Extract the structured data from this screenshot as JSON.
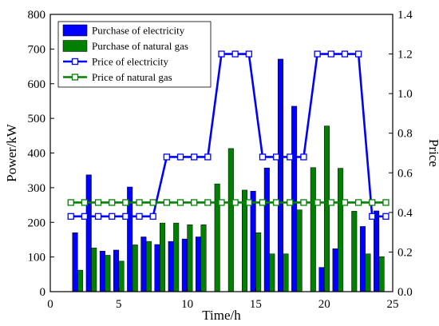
{
  "chart_data": {
    "type": "bar",
    "xlabel": "Time/h",
    "ylabel_left": "Power/kW",
    "ylabel_right": "Price",
    "xlim": [
      0,
      25
    ],
    "ylim_left": [
      0,
      800
    ],
    "ylim_right": [
      0,
      1.4
    ],
    "x_ticks": [
      "0",
      "5",
      "10",
      "15",
      "20",
      "25"
    ],
    "y_left_ticks": [
      "0",
      "100",
      "200",
      "300",
      "400",
      "500",
      "600",
      "700",
      "800"
    ],
    "y_right_ticks": [
      "0.0",
      "0.2",
      "0.4",
      "0.6",
      "0.8",
      "1.0",
      "1.2",
      "1.4"
    ],
    "grid": false,
    "legend_position": "top-left",
    "hours": [
      2,
      3,
      4,
      5,
      6,
      7,
      8,
      9,
      10,
      11,
      12,
      13,
      14,
      15,
      16,
      17,
      18,
      19,
      20,
      21,
      22,
      23,
      24
    ],
    "series": [
      {
        "name": "Purchase of electricity",
        "kind": "bar",
        "axis": "left",
        "color": "#0000ff",
        "values": [
          170,
          337,
          117,
          120,
          302,
          158,
          136,
          145,
          152,
          158,
          0,
          0,
          0,
          290,
          357,
          671,
          535,
          0,
          70,
          124,
          0,
          188,
          233
        ]
      },
      {
        "name": "Purchase of natural gas",
        "kind": "bar",
        "axis": "left",
        "color": "#008000",
        "values": [
          62,
          126,
          105,
          88,
          135,
          145,
          198,
          198,
          193,
          193,
          311,
          413,
          293,
          170,
          109,
          109,
          236,
          358,
          478,
          356,
          232,
          109,
          101
        ]
      },
      {
        "name": "Price of electricity",
        "kind": "line",
        "axis": "right",
        "color": "#0000ff",
        "points": [
          [
            1.5,
            0.38
          ],
          [
            2.5,
            0.38
          ],
          [
            3.5,
            0.38
          ],
          [
            4.5,
            0.38
          ],
          [
            5.5,
            0.38
          ],
          [
            6.5,
            0.38
          ],
          [
            7.5,
            0.38
          ],
          [
            8.5,
            0.68
          ],
          [
            9.5,
            0.68
          ],
          [
            10.5,
            0.68
          ],
          [
            11.5,
            0.68
          ],
          [
            12.5,
            1.2
          ],
          [
            13.5,
            1.2
          ],
          [
            14.5,
            1.2
          ],
          [
            15.5,
            0.68
          ],
          [
            16.5,
            0.68
          ],
          [
            17.5,
            0.68
          ],
          [
            18.5,
            0.68
          ],
          [
            19.5,
            1.2
          ],
          [
            20.5,
            1.2
          ],
          [
            21.5,
            1.2
          ],
          [
            22.5,
            1.2
          ],
          [
            23.5,
            0.38
          ],
          [
            24.5,
            0.38
          ]
        ]
      },
      {
        "name": "Price of natural gas",
        "kind": "line",
        "axis": "right",
        "color": "#008000",
        "points": [
          [
            1.5,
            0.45
          ],
          [
            2.5,
            0.45
          ],
          [
            3.5,
            0.45
          ],
          [
            4.5,
            0.45
          ],
          [
            5.5,
            0.45
          ],
          [
            6.5,
            0.45
          ],
          [
            7.5,
            0.45
          ],
          [
            8.5,
            0.45
          ],
          [
            9.5,
            0.45
          ],
          [
            10.5,
            0.45
          ],
          [
            11.5,
            0.45
          ],
          [
            12.5,
            0.45
          ],
          [
            13.5,
            0.45
          ],
          [
            14.5,
            0.45
          ],
          [
            15.5,
            0.45
          ],
          [
            16.5,
            0.45
          ],
          [
            17.5,
            0.45
          ],
          [
            18.5,
            0.45
          ],
          [
            19.5,
            0.45
          ],
          [
            20.5,
            0.45
          ],
          [
            21.5,
            0.45
          ],
          [
            22.5,
            0.45
          ],
          [
            23.5,
            0.45
          ],
          [
            24.5,
            0.45
          ]
        ]
      }
    ]
  }
}
